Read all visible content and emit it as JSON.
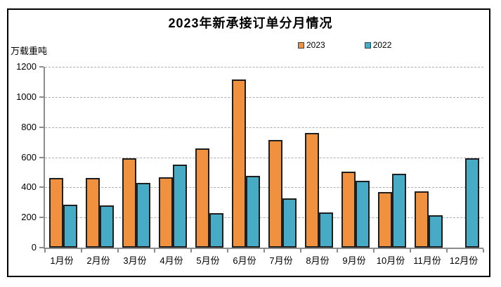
{
  "chart_data": {
    "type": "bar",
    "title": "2023年新承接订单分月情况",
    "unit_label": "万载重吨",
    "categories": [
      "1月份",
      "2月份",
      "3月份",
      "4月份",
      "5月份",
      "6月份",
      "7月份",
      "8月份",
      "9月份",
      "10月份",
      "11月份",
      "12月份"
    ],
    "series": [
      {
        "name": "2023",
        "color": "#F0913F",
        "values": [
          460,
          463,
          594,
          468,
          660,
          1118,
          715,
          763,
          505,
          371,
          375,
          null
        ]
      },
      {
        "name": "2022",
        "color": "#47ABC6",
        "values": [
          283,
          281,
          429,
          549,
          230,
          475,
          329,
          233,
          443,
          490,
          215,
          593
        ]
      }
    ],
    "ylim": [
      0,
      1200
    ],
    "yticks": [
      0,
      200,
      400,
      600,
      800,
      1000,
      1200
    ],
    "legend_position": "top",
    "grid": "horizontal-dotted",
    "colors": {
      "series_2023": "#F0913F",
      "series_2022": "#47ABC6",
      "bar_border": "#1F1F1F",
      "axis": "#8C8C8C",
      "gridline": "#ADADAD",
      "frame_border": "#000000",
      "background": "#FFFFFF",
      "text": "#000000"
    }
  }
}
